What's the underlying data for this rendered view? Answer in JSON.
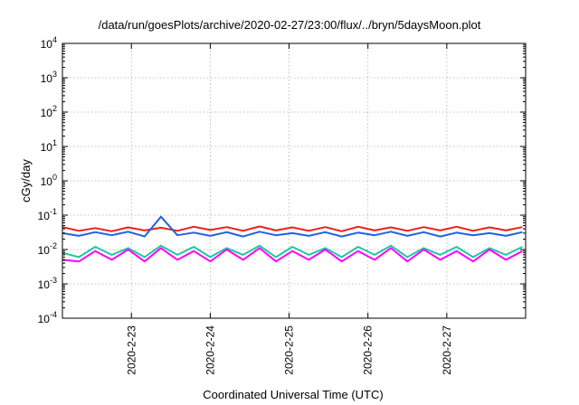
{
  "chart_data": {
    "type": "line",
    "title": "/data/run/goesPlots/archive/2020-02-27/23:00/flux/../bryn/5daysMoon.plot",
    "xlabel": "Coordinated Universal Time (UTC)",
    "ylabel": "cGy/day",
    "yscale": "log",
    "ylim": [
      0.0001,
      10000
    ],
    "xlim": [
      "2020-02-22T03:00",
      "2020-02-28T00:00"
    ],
    "grid": true,
    "y_ticks": [
      {
        "base": "10",
        "exp": "-4",
        "value": 0.0001
      },
      {
        "base": "10",
        "exp": "-3",
        "value": 0.001
      },
      {
        "base": "10",
        "exp": "-2",
        "value": 0.01
      },
      {
        "base": "10",
        "exp": "-1",
        "value": 0.1
      },
      {
        "base": "10",
        "exp": "0",
        "value": 1
      },
      {
        "base": "10",
        "exp": "1",
        "value": 10
      },
      {
        "base": "10",
        "exp": "2",
        "value": 100
      },
      {
        "base": "10",
        "exp": "3",
        "value": 1000
      },
      {
        "base": "10",
        "exp": "4",
        "value": 10000
      }
    ],
    "x_ticks": [
      {
        "label": "2020-2-23",
        "value": "2020-02-23T00:00"
      },
      {
        "label": "2020-2-24",
        "value": "2020-02-24T00:00"
      },
      {
        "label": "2020-2-25",
        "value": "2020-02-25T00:00"
      },
      {
        "label": "2020-2-26",
        "value": "2020-02-26T00:00"
      },
      {
        "label": "2020-2-27",
        "value": "2020-02-27T00:00"
      }
    ],
    "x": [
      "2020-02-22T03:00",
      "2020-02-22T08:00",
      "2020-02-22T13:00",
      "2020-02-22T18:00",
      "2020-02-22T23:00",
      "2020-02-23T04:00",
      "2020-02-23T09:00",
      "2020-02-23T14:00",
      "2020-02-23T19:00",
      "2020-02-24T00:00",
      "2020-02-24T05:00",
      "2020-02-24T10:00",
      "2020-02-24T15:00",
      "2020-02-24T20:00",
      "2020-02-25T01:00",
      "2020-02-25T06:00",
      "2020-02-25T11:00",
      "2020-02-25T16:00",
      "2020-02-25T21:00",
      "2020-02-26T02:00",
      "2020-02-26T07:00",
      "2020-02-26T12:00",
      "2020-02-26T17:00",
      "2020-02-26T22:00",
      "2020-02-27T03:00",
      "2020-02-27T08:00",
      "2020-02-27T13:00",
      "2020-02-27T18:00",
      "2020-02-27T23:00"
    ],
    "series": [
      {
        "color": "#e8211b",
        "values": [
          0.045,
          0.035,
          0.042,
          0.034,
          0.044,
          0.036,
          0.043,
          0.035,
          0.046,
          0.037,
          0.045,
          0.035,
          0.047,
          0.036,
          0.044,
          0.035,
          0.045,
          0.034,
          0.046,
          0.036,
          0.044,
          0.035,
          0.045,
          0.036,
          0.046,
          0.035,
          0.044,
          0.036,
          0.045
        ]
      },
      {
        "color": "#2062e0",
        "values": [
          0.03,
          0.025,
          0.032,
          0.026,
          0.033,
          0.024,
          0.09,
          0.026,
          0.031,
          0.025,
          0.032,
          0.024,
          0.033,
          0.026,
          0.03,
          0.025,
          0.032,
          0.024,
          0.031,
          0.026,
          0.033,
          0.025,
          0.032,
          0.024,
          0.031,
          0.026,
          0.03,
          0.025,
          0.032
        ]
      },
      {
        "color": "#20c8a0",
        "values": [
          0.008,
          0.006,
          0.012,
          0.007,
          0.011,
          0.006,
          0.013,
          0.007,
          0.012,
          0.006,
          0.011,
          0.007,
          0.013,
          0.006,
          0.012,
          0.007,
          0.011,
          0.006,
          0.012,
          0.007,
          0.013,
          0.006,
          0.011,
          0.007,
          0.012,
          0.006,
          0.011,
          0.007,
          0.012
        ]
      },
      {
        "color": "#ff00ff",
        "values": [
          0.005,
          0.0045,
          0.009,
          0.005,
          0.01,
          0.0045,
          0.011,
          0.005,
          0.009,
          0.0045,
          0.01,
          0.005,
          0.011,
          0.0045,
          0.009,
          0.005,
          0.01,
          0.0045,
          0.009,
          0.005,
          0.011,
          0.0045,
          0.01,
          0.005,
          0.009,
          0.0045,
          0.01,
          0.005,
          0.009
        ]
      }
    ]
  }
}
